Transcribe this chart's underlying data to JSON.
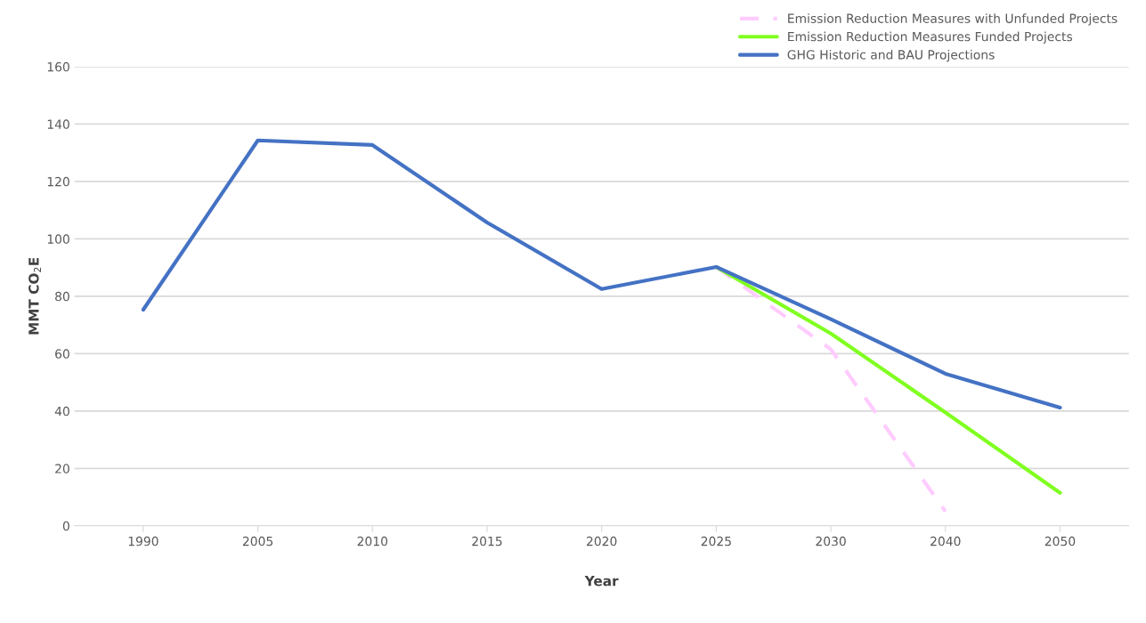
{
  "chart_data": {
    "type": "line",
    "xlabel": "Year",
    "ylabel": "MMT CO$_{2}$E",
    "categories": [
      "1990",
      "2005",
      "2010",
      "2015",
      "2020",
      "2025",
      "2030",
      "2040",
      "2050"
    ],
    "series": [
      {
        "name": "Emission Reduction Measures with Unfunded Projects",
        "color": "#ffccff",
        "line_style": "dashed",
        "values": [
          null,
          null,
          null,
          null,
          null,
          90.2,
          61.5,
          5,
          null
        ]
      },
      {
        "name": "Emission Reduction Measures Funded Projects",
        "color": "#80ff20",
        "values": [
          null,
          null,
          null,
          null,
          null,
          90.2,
          67,
          39.5,
          11.5
        ]
      },
      {
        "name": "GHG Historic and BAU Projections",
        "color": "#4472c4",
        "values": [
          75.3,
          134.3,
          132.7,
          105.7,
          82.5,
          90.2,
          72,
          53,
          41.2
        ]
      }
    ],
    "ylim": [
      0,
      160
    ],
    "yticks": [
      0,
      20,
      40,
      60,
      80,
      100,
      120,
      140,
      160
    ],
    "grid": "y",
    "legend": "top right",
    "line_style": "solid",
    "marker": "none"
  }
}
